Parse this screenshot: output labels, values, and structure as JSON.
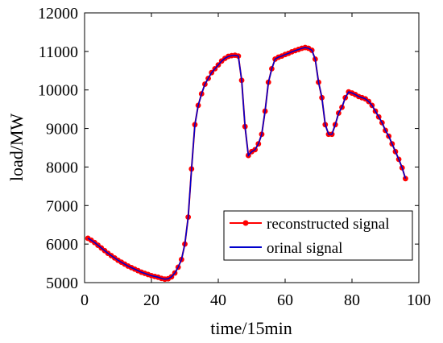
{
  "chart_data": {
    "type": "line",
    "title": "",
    "xlabel": "time/15min",
    "ylabel": "load/MW",
    "xlim": [
      0,
      100
    ],
    "ylim": [
      5000,
      12000
    ],
    "xticks": [
      0,
      20,
      40,
      60,
      80,
      100
    ],
    "yticks": [
      5000,
      6000,
      7000,
      8000,
      9000,
      10000,
      11000,
      12000
    ],
    "grid": false,
    "legend_position": "bottom-right",
    "x": [
      1,
      2,
      3,
      4,
      5,
      6,
      7,
      8,
      9,
      10,
      11,
      12,
      13,
      14,
      15,
      16,
      17,
      18,
      19,
      20,
      21,
      22,
      23,
      24,
      25,
      26,
      27,
      28,
      29,
      30,
      31,
      32,
      33,
      34,
      35,
      36,
      37,
      38,
      39,
      40,
      41,
      42,
      43,
      44,
      45,
      46,
      47,
      48,
      49,
      50,
      51,
      52,
      53,
      54,
      55,
      56,
      57,
      58,
      59,
      60,
      61,
      62,
      63,
      64,
      65,
      66,
      67,
      68,
      69,
      70,
      71,
      72,
      73,
      74,
      75,
      76,
      77,
      78,
      79,
      80,
      81,
      82,
      83,
      84,
      85,
      86,
      87,
      88,
      89,
      90,
      91,
      92,
      93,
      94,
      95,
      96
    ],
    "series": [
      {
        "name": "reconstructed signal",
        "color": "#ff0000",
        "marker": "circle",
        "values": [
          6150,
          6100,
          6040,
          5970,
          5900,
          5830,
          5760,
          5700,
          5640,
          5580,
          5530,
          5480,
          5430,
          5390,
          5350,
          5310,
          5270,
          5240,
          5210,
          5180,
          5160,
          5140,
          5110,
          5090,
          5100,
          5150,
          5250,
          5400,
          5600,
          6000,
          6700,
          7950,
          9100,
          9600,
          9900,
          10150,
          10300,
          10450,
          10550,
          10650,
          10750,
          10820,
          10870,
          10890,
          10900,
          10880,
          10250,
          9050,
          8300,
          8400,
          8450,
          8600,
          8850,
          9450,
          10200,
          10550,
          10800,
          10850,
          10880,
          10920,
          10950,
          10990,
          11020,
          11050,
          11080,
          11100,
          11080,
          11030,
          10800,
          10200,
          9800,
          9100,
          8850,
          8850,
          9100,
          9400,
          9550,
          9800,
          9950,
          9920,
          9880,
          9830,
          9800,
          9770,
          9700,
          9600,
          9450,
          9300,
          9150,
          8950,
          8800,
          8600,
          8400,
          8200,
          7980,
          7700
        ]
      },
      {
        "name": "orinal signal",
        "color": "#0000cc",
        "marker": "none",
        "values": [
          6150,
          6100,
          6040,
          5970,
          5900,
          5830,
          5760,
          5700,
          5640,
          5580,
          5530,
          5480,
          5430,
          5390,
          5350,
          5310,
          5270,
          5240,
          5210,
          5180,
          5160,
          5140,
          5110,
          5090,
          5100,
          5150,
          5250,
          5400,
          5600,
          6000,
          6700,
          7950,
          9100,
          9600,
          9900,
          10150,
          10300,
          10450,
          10550,
          10650,
          10750,
          10820,
          10870,
          10890,
          10900,
          10880,
          10250,
          9050,
          8300,
          8400,
          8450,
          8600,
          8850,
          9450,
          10200,
          10550,
          10800,
          10850,
          10880,
          10920,
          10950,
          10990,
          11020,
          11050,
          11080,
          11100,
          11080,
          11030,
          10800,
          10200,
          9800,
          9100,
          8850,
          8850,
          9100,
          9400,
          9550,
          9800,
          9950,
          9920,
          9880,
          9830,
          9800,
          9770,
          9700,
          9600,
          9450,
          9300,
          9150,
          8950,
          8800,
          8600,
          8400,
          8200,
          7980,
          7700
        ]
      }
    ]
  }
}
